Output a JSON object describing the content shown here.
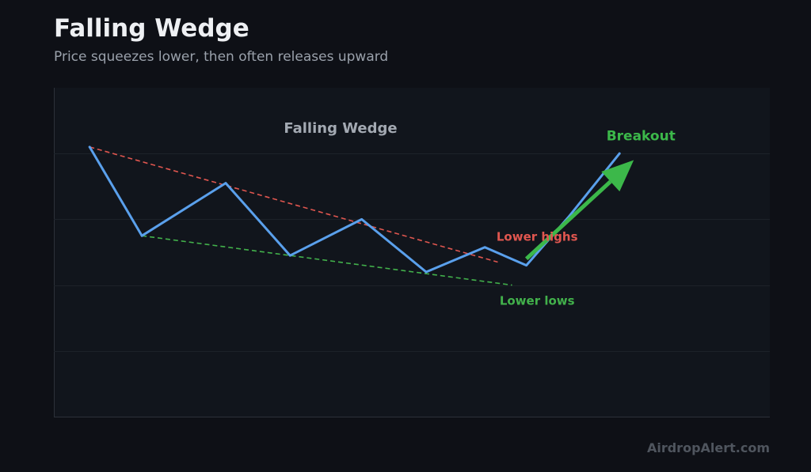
{
  "header": {
    "title": "Falling Wedge",
    "subtitle": "Price squeezes lower, then often releases upward"
  },
  "watermark": "AirdropAlert.com",
  "colors": {
    "background": "#0e1016",
    "plot_background": "#11151c",
    "price_line": "#5aa0ec",
    "upper_trendline": "#e0564f",
    "lower_trendline": "#42b14b",
    "breakout_arrow": "#3cb84a"
  },
  "chart_data": {
    "type": "line",
    "title": "Falling Wedge",
    "xlabel": "",
    "ylabel": "",
    "xlim": [
      0,
      10
    ],
    "ylim": [
      0,
      10
    ],
    "grid": true,
    "series": [
      {
        "x": [
          0.5,
          1.23,
          2.4,
          3.3,
          4.3,
          5.2,
          6.02,
          6.6,
          7.2,
          7.9
        ],
        "y": [
          8.2,
          5.5,
          7.1,
          4.9,
          6.0,
          4.4,
          5.15,
          4.6,
          6.1,
          8.0
        ]
      }
    ],
    "trendlines": [
      {
        "name": "upper",
        "x": [
          0.5,
          6.2
        ],
        "y": [
          8.2,
          4.7
        ]
      },
      {
        "name": "lower",
        "x": [
          1.23,
          6.4
        ],
        "y": [
          5.5,
          4.0
        ]
      }
    ],
    "breakout_arrow": {
      "from": [
        6.6,
        4.8
      ],
      "to": [
        8.1,
        7.8
      ]
    },
    "annotations": [
      {
        "text": "Breakout",
        "x": 8.2,
        "y": 8.4,
        "color": "#3cb84a"
      },
      {
        "text": "Lower highs",
        "x": 6.75,
        "y": 5.35,
        "color": "#e0564f"
      },
      {
        "text": "Lower lows",
        "x": 6.75,
        "y": 3.4,
        "color": "#42b14b"
      }
    ]
  }
}
